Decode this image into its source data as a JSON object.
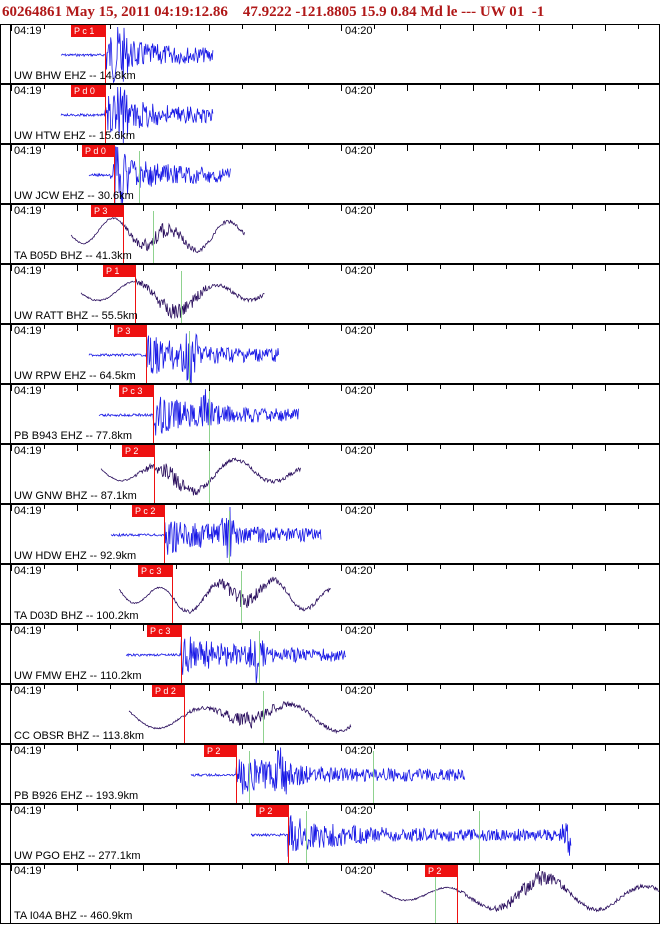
{
  "header": {
    "event_id": "60264861",
    "datetime": "May 15, 2011 04:19:12.86",
    "coords": "47.9222 -121.8805",
    "depth": "15.9",
    "magnitude": "0.84 Md",
    "event_type": "le",
    "sep": "---",
    "network": "UW",
    "version": "01",
    "extra": "-1"
  },
  "time_labels": {
    "left": "04:19",
    "right": "04:20"
  },
  "colors": {
    "ehz": "#1a1ae6",
    "bhz": "#2b0f5e",
    "pick": "#ee1111",
    "secondary": "#8fd28f"
  },
  "stations": [
    {
      "label": "UW BHW EHZ -- 14.8km",
      "pick": "P c 1",
      "type": "EHZ"
    },
    {
      "label": "UW HTW EHZ -- 15.6km",
      "pick": "P d 0",
      "type": "EHZ"
    },
    {
      "label": "UW JCW EHZ -- 30.6km",
      "pick": "P d 0",
      "type": "EHZ"
    },
    {
      "label": "TA B05D BHZ -- 41.3km",
      "pick": "P 3",
      "type": "BHZ"
    },
    {
      "label": "UW RATT BHZ -- 55.5km",
      "pick": "P 1",
      "type": "BHZ"
    },
    {
      "label": "UW RPW EHZ -- 64.5km",
      "pick": "P 3",
      "type": "EHZ"
    },
    {
      "label": "PB B943 EHZ -- 77.8km",
      "pick": "P c 3",
      "type": "EHZ"
    },
    {
      "label": "UW GNW BHZ -- 87.1km",
      "pick": "P 2",
      "type": "BHZ"
    },
    {
      "label": "UW HDW EHZ -- 92.9km",
      "pick": "P c 2",
      "type": "EHZ"
    },
    {
      "label": "TA D03D BHZ -- 100.2km",
      "pick": "P c 3",
      "type": "BHZ"
    },
    {
      "label": "UW FMW EHZ -- 110.2km",
      "pick": "P c 3",
      "type": "EHZ"
    },
    {
      "label": "CC OBSR BHZ -- 113.8km",
      "pick": "P d 2",
      "type": "BHZ"
    },
    {
      "label": "PB B926 EHZ -- 193.9km",
      "pick": "P 2",
      "type": "EHZ"
    },
    {
      "label": "UW PGO EHZ -- 277.1km",
      "pick": "P 2",
      "type": "EHZ"
    },
    {
      "label": "TA I04A BHZ -- 460.9km",
      "pick": "P 2",
      "type": "BHZ"
    }
  ]
}
